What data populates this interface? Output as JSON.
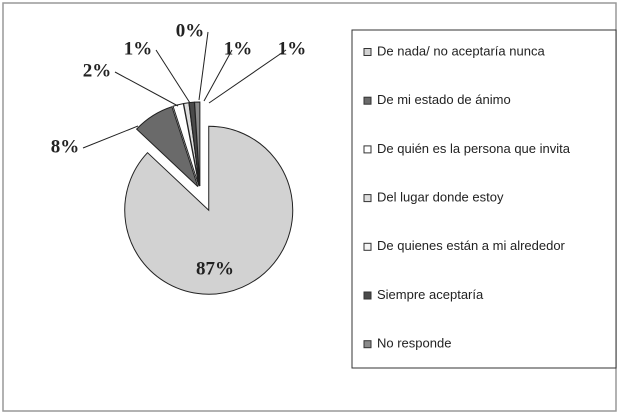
{
  "chart_data": {
    "type": "pie",
    "categories": [
      "De nada/ no aceptaría nunca",
      "De mi estado de ánimo",
      "De quién es la persona que invita",
      "Del lugar donde estoy",
      "De quienes están a mi alrededor",
      "Siempre aceptaría",
      "No responde"
    ],
    "values": [
      87,
      8,
      2,
      1,
      0,
      1,
      1
    ],
    "value_labels": [
      "87%",
      "8%",
      "2%",
      "1%",
      "0%",
      "1%",
      "1%"
    ],
    "colors": [
      "#d2d2d2",
      "#6a6a6a",
      "#ffffff",
      "#dedede",
      "#f4f4f4",
      "#4a4a4a",
      "#8a8a8a"
    ]
  }
}
